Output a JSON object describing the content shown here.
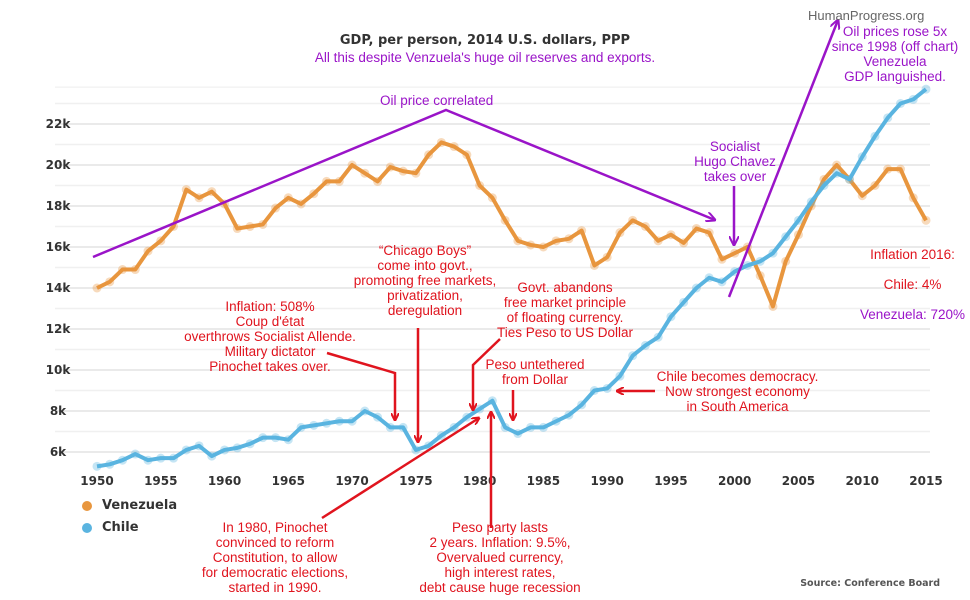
{
  "watermark": "HumanProgress.org",
  "chart_data": {
    "type": "line",
    "title": "GDP, per person, 2014 U.S. dollars, PPP",
    "subtitle": "All this despite Venzuela's huge oil reserves and exports.",
    "xlabel": "",
    "ylabel": "",
    "xlim": [
      1950,
      2015
    ],
    "ylim": [
      5000,
      23000
    ],
    "x_ticks": [
      "1950",
      "1955",
      "1960",
      "1965",
      "1970",
      "1975",
      "1980",
      "1985",
      "1990",
      "1995",
      "2000",
      "2005",
      "2010",
      "2015"
    ],
    "y_ticks": [
      {
        "value": 6000,
        "label": "6k"
      },
      {
        "value": 8000,
        "label": "8k"
      },
      {
        "value": 10000,
        "label": "10k"
      },
      {
        "value": 12000,
        "label": "12k"
      },
      {
        "value": 14000,
        "label": "14k"
      },
      {
        "value": 16000,
        "label": "16k"
      },
      {
        "value": 18000,
        "label": "18k"
      },
      {
        "value": 20000,
        "label": "20k"
      },
      {
        "value": 22000,
        "label": "22k"
      }
    ],
    "grid": true,
    "legend_position": "bottom-left",
    "x_start": 1950,
    "series": [
      {
        "name": "Venezuela",
        "color": "#e8963e",
        "values": [
          14000,
          14300,
          14900,
          14900,
          15800,
          16300,
          17000,
          18800,
          18400,
          18700,
          18100,
          16900,
          17000,
          17100,
          17900,
          18400,
          18100,
          18600,
          19200,
          19200,
          20000,
          19600,
          19200,
          19900,
          19700,
          19600,
          20500,
          21100,
          20900,
          20500,
          19000,
          18400,
          17300,
          16300,
          16100,
          16000,
          16300,
          16400,
          16800,
          15100,
          15500,
          16700,
          17300,
          17000,
          16300,
          16600,
          16200,
          16900,
          16700,
          15400,
          15700,
          16000,
          14600,
          13100,
          15300,
          16600,
          18000,
          19300,
          20000,
          19300,
          18500,
          19000,
          19800,
          19800,
          18400,
          17300
        ]
      },
      {
        "name": "Chile",
        "color": "#5ab4e0",
        "values": [
          5300,
          5400,
          5600,
          5900,
          5600,
          5700,
          5700,
          6100,
          6300,
          5800,
          6100,
          6200,
          6400,
          6700,
          6700,
          6600,
          7200,
          7300,
          7400,
          7500,
          7500,
          8000,
          7700,
          7200,
          7200,
          6100,
          6300,
          6800,
          7200,
          7700,
          8100,
          8500,
          7200,
          6900,
          7200,
          7200,
          7500,
          7800,
          8300,
          9000,
          9100,
          9700,
          10700,
          11200,
          11600,
          12600,
          13300,
          14000,
          14500,
          14300,
          14800,
          15100,
          15300,
          15700,
          16500,
          17300,
          18200,
          19000,
          19600,
          19300,
          20400,
          21400,
          22300,
          23000,
          23200,
          23700
        ]
      }
    ],
    "source": "Source: Conference Board",
    "annotations": {
      "oil_correlated": "Oil price correlated",
      "oil_rose": "Oil prices rose 5x\nsince 1998 (off chart)\nVenezuela\nGDP languished.",
      "chavez": "Socialist\nHugo Chavez\ntakes over",
      "inflation_2016_title": "Inflation 2016:",
      "inflation_2016_chile": "Chile: 4%",
      "inflation_2016_venezuela": "Venezuela: 720%",
      "coup": "Inflation: 508%\nCoup d'état\noverthrows Socialist Allende.\nMilitary dictator\nPinochet takes over.",
      "chicago_boys": "“Chicago Boys”\ncome into govt.,\npromoting free markets,\nprivatization,\nderegulation",
      "peg": "Govt. abandons\nfree market principle\nof floating currency.\nTies Peso to US Dollar",
      "untethered": "Peso untethered\nfrom Dollar",
      "democracy": "Chile becomes democracy.\nNow strongest economy\nin South America",
      "constitution": "In 1980, Pinochet\nconvinced to reform\nConstitution, to allow\nfor democratic elections,\nstarted in 1990.",
      "peso_party": "Peso party lasts\n2 years.  Inflation: 9.5%,\nOvervalued currency,\nhigh interest rates,\ndebt cause huge recession"
    },
    "annotation_colors": {
      "red": "#e0141e",
      "purple": "#9a14c8"
    }
  }
}
